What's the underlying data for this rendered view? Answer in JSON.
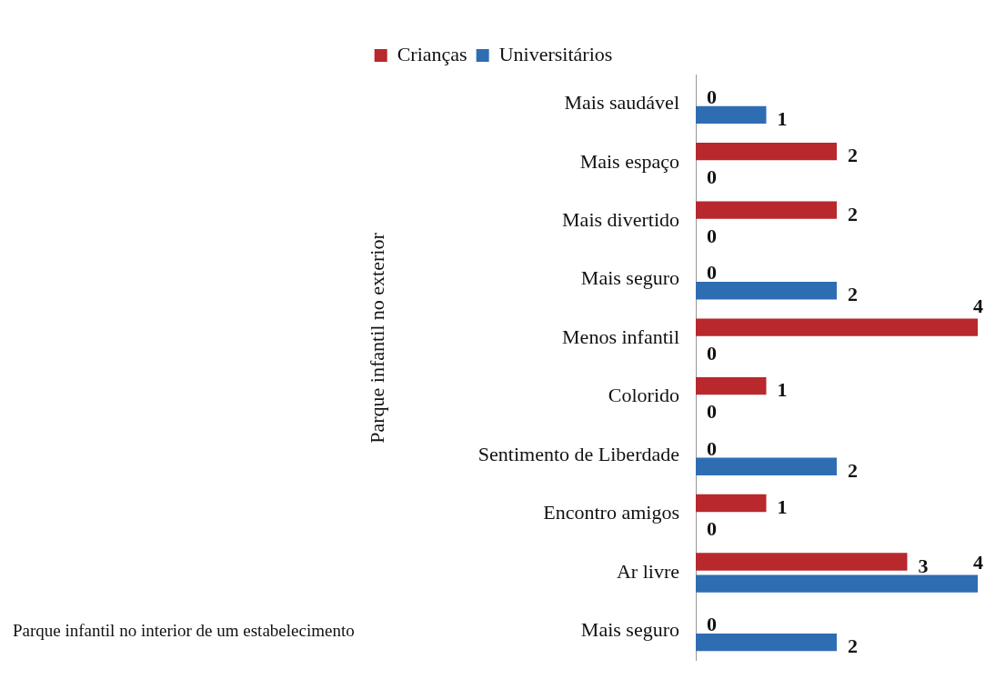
{
  "chart_data": {
    "type": "bar",
    "orientation": "horizontal",
    "categories": [
      "Mais saudável",
      "Mais espaço",
      "Mais divertido",
      "Mais seguro",
      "Menos infantil",
      "Colorido",
      "Sentimento de Liberdade",
      "Encontro amigos",
      "Ar livre",
      "Mais seguro"
    ],
    "series": [
      {
        "name": "Crianças",
        "color": "#b8282c",
        "values": [
          0,
          2,
          2,
          0,
          4,
          1,
          0,
          1,
          3,
          0
        ]
      },
      {
        "name": "Universitários",
        "color": "#2f6db3",
        "values": [
          1,
          0,
          0,
          2,
          0,
          0,
          2,
          0,
          4,
          2
        ]
      }
    ],
    "xlim": [
      0,
      4
    ],
    "tick_labels": "y",
    "grid": false,
    "legend": "top",
    "data_labels": true,
    "annotations": [
      "Parque infantil no exterior",
      "Parque infantil no interior de um estabelecimento"
    ]
  }
}
